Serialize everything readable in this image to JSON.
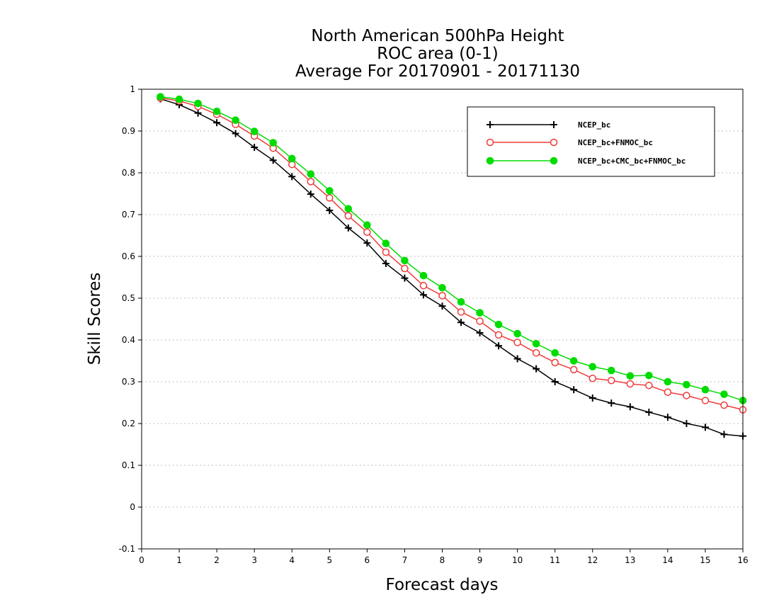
{
  "chart_data": {
    "type": "line",
    "title": [
      "North American 500hPa Height",
      "ROC area (0-1)",
      "Average For 20170901 - 20171130"
    ],
    "xlabel": "Forecast days",
    "ylabel": "Skill Scores",
    "xlim": [
      0,
      16
    ],
    "ylim": [
      -0.1,
      1
    ],
    "xticks": [
      "0",
      "1",
      "2",
      "3",
      "4",
      "5",
      "6",
      "7",
      "8",
      "9",
      "10",
      "11",
      "12",
      "13",
      "14",
      "15",
      "16"
    ],
    "yticks": [
      "-0.1",
      "0",
      "0.1",
      "0.2",
      "0.3",
      "0.4",
      "0.5",
      "0.6",
      "0.7",
      "0.8",
      "0.9",
      "1"
    ],
    "grid": "horizontal-dotted",
    "legend_position": "top-right",
    "x": [
      0.5,
      1,
      1.5,
      2,
      2.5,
      3,
      3.5,
      4,
      4.5,
      5,
      5.5,
      6,
      6.5,
      7,
      7.5,
      8,
      8.5,
      9,
      9.5,
      10,
      10.5,
      11,
      11.5,
      12,
      12.5,
      13,
      13.5,
      14,
      14.5,
      15,
      15.5,
      16
    ],
    "series": [
      {
        "name": "NCEP_bc",
        "color": "#000000",
        "marker": "plus",
        "values": [
          0.977,
          0.963,
          0.943,
          0.92,
          0.894,
          0.861,
          0.83,
          0.791,
          0.749,
          0.71,
          0.668,
          0.632,
          0.583,
          0.548,
          0.508,
          0.481,
          0.442,
          0.417,
          0.386,
          0.355,
          0.331,
          0.3,
          0.281,
          0.261,
          0.249,
          0.24,
          0.227,
          0.215,
          0.2,
          0.191,
          0.174,
          0.17
        ]
      },
      {
        "name": "NCEP_bc+FNMOC_bc",
        "color": "#ee3b3b",
        "marker": "open-circle",
        "values": [
          0.979,
          0.972,
          0.959,
          0.94,
          0.916,
          0.888,
          0.859,
          0.82,
          0.779,
          0.74,
          0.697,
          0.658,
          0.61,
          0.571,
          0.53,
          0.506,
          0.467,
          0.445,
          0.412,
          0.394,
          0.369,
          0.346,
          0.329,
          0.308,
          0.303,
          0.295,
          0.291,
          0.275,
          0.267,
          0.255,
          0.244,
          0.233
        ]
      },
      {
        "name": "NCEP_bc+CMC_bc+FNMOC_bc",
        "color": "#00dc00",
        "marker": "filled-circle",
        "values": [
          0.982,
          0.976,
          0.966,
          0.947,
          0.926,
          0.899,
          0.872,
          0.834,
          0.797,
          0.757,
          0.714,
          0.675,
          0.631,
          0.59,
          0.554,
          0.525,
          0.491,
          0.465,
          0.437,
          0.415,
          0.391,
          0.369,
          0.35,
          0.336,
          0.327,
          0.314,
          0.315,
          0.3,
          0.293,
          0.281,
          0.27,
          0.255
        ]
      }
    ]
  }
}
